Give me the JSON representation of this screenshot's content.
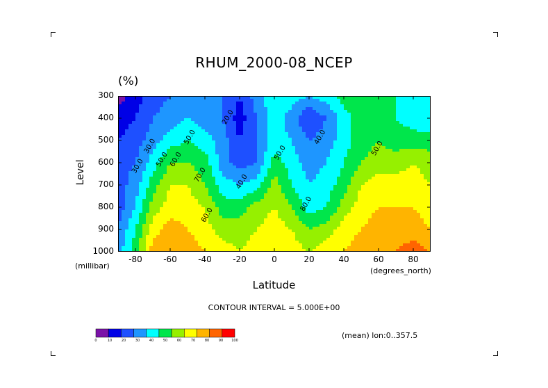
{
  "chart_data": {
    "type": "heatmap",
    "title": "RHUM_2000-08_NCEP",
    "units": "(%)",
    "xlabel": "Latitude",
    "ylabel": "Level",
    "x_units": "(degrees_north)",
    "y_units": "(millibar)",
    "x_ticks": [
      "-80",
      "-60",
      "-40",
      "-20",
      "0",
      "20",
      "40",
      "60",
      "80"
    ],
    "y_ticks": [
      "300",
      "400",
      "500",
      "600",
      "700",
      "800",
      "900",
      "1000"
    ],
    "xlim": [
      -90,
      90
    ],
    "ylim": [
      1000,
      300
    ],
    "latitudes": [
      -90,
      -80,
      -70,
      -60,
      -50,
      -40,
      -30,
      -20,
      -10,
      0,
      10,
      20,
      30,
      40,
      50,
      60,
      70,
      80,
      90
    ],
    "levels": [
      300,
      400,
      500,
      600,
      700,
      800,
      900,
      1000
    ],
    "values": [
      [
        5,
        15,
        25,
        30,
        35,
        35,
        30,
        20,
        35,
        50,
        45,
        40,
        45,
        55,
        60,
        55,
        50,
        45,
        40
      ],
      [
        15,
        20,
        30,
        35,
        40,
        35,
        30,
        15,
        30,
        45,
        35,
        20,
        30,
        45,
        55,
        55,
        50,
        45,
        40
      ],
      [
        20,
        25,
        35,
        45,
        50,
        45,
        35,
        20,
        30,
        45,
        40,
        30,
        35,
        45,
        55,
        60,
        55,
        55,
        55
      ],
      [
        25,
        30,
        45,
        60,
        60,
        55,
        35,
        25,
        30,
        55,
        45,
        35,
        40,
        50,
        60,
        65,
        65,
        70,
        65
      ],
      [
        25,
        35,
        55,
        70,
        70,
        60,
        45,
        40,
        45,
        65,
        50,
        40,
        45,
        55,
        70,
        75,
        75,
        75,
        70
      ],
      [
        25,
        40,
        65,
        75,
        75,
        70,
        55,
        55,
        65,
        70,
        60,
        45,
        50,
        65,
        75,
        80,
        80,
        80,
        75
      ],
      [
        30,
        50,
        75,
        85,
        80,
        75,
        65,
        65,
        70,
        75,
        70,
        60,
        65,
        75,
        80,
        85,
        85,
        85,
        80
      ],
      [
        35,
        55,
        85,
        90,
        85,
        80,
        75,
        70,
        75,
        80,
        75,
        70,
        75,
        80,
        85,
        90,
        90,
        95,
        90
      ]
    ],
    "contour_labels": [
      "30.0",
      "50.0",
      "30.0",
      "40.0",
      "50.0",
      "60.0",
      "60.0",
      "40.0",
      "50.0",
      "50.0",
      "80.0",
      "70.0",
      "20.0"
    ],
    "colorbar": {
      "ticks": [
        "0",
        "10",
        "20",
        "30",
        "40",
        "50",
        "60",
        "70",
        "80",
        "90",
        "100"
      ],
      "colors": [
        "#7b12a8",
        "#0000e6",
        "#1e50ff",
        "#1e96ff",
        "#00ffff",
        "#00e64b",
        "#96f000",
        "#ffff00",
        "#ffb400",
        "#ff6400",
        "#ff0000"
      ]
    }
  },
  "contour_interval": "CONTOUR INTERVAL = 5.000E+00",
  "mean_note": "(mean) lon:0..357.5"
}
